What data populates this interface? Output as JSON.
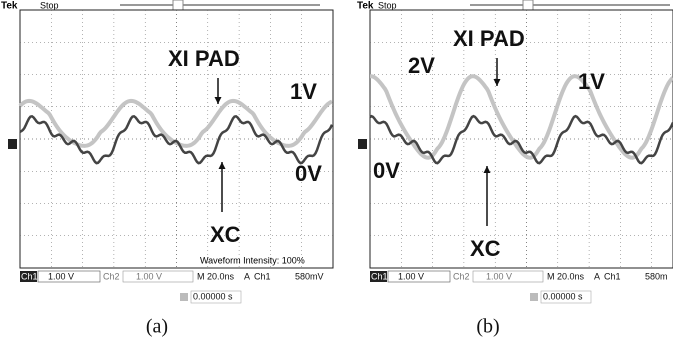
{
  "panels": [
    {
      "header": {
        "brand": "Tek",
        "status": "Stop"
      },
      "annotations": [
        "XI PAD",
        "1V",
        "0V",
        "XC"
      ],
      "intensity": "Waveform Intensity: 100%",
      "status_bar": {
        "ch1": "Ch1",
        "ch1_scale": "1.00 V",
        "ch2": "Ch2",
        "ch2_scale": "1.00 V",
        "timebase": "M 20.0ns",
        "trigger_mode": "A",
        "trigger_source": "Ch1",
        "trigger_level": "580mV"
      },
      "trigger_time": "0.00000 s",
      "caption": "(a)"
    },
    {
      "header": {
        "brand": "Tek",
        "status": "Stop"
      },
      "annotations": [
        "XI PAD",
        "2V",
        "1V",
        "0V",
        "XC"
      ],
      "status_bar": {
        "ch1": "Ch1",
        "ch1_scale": "1.00 V",
        "ch2": "Ch2",
        "ch2_scale": "1.00 V",
        "timebase": "M 20.0ns",
        "trigger_mode": "A",
        "trigger_source": "Ch1",
        "trigger_level": "580m"
      },
      "trigger_time": "0.00000 s",
      "caption": "(b)"
    }
  ]
}
